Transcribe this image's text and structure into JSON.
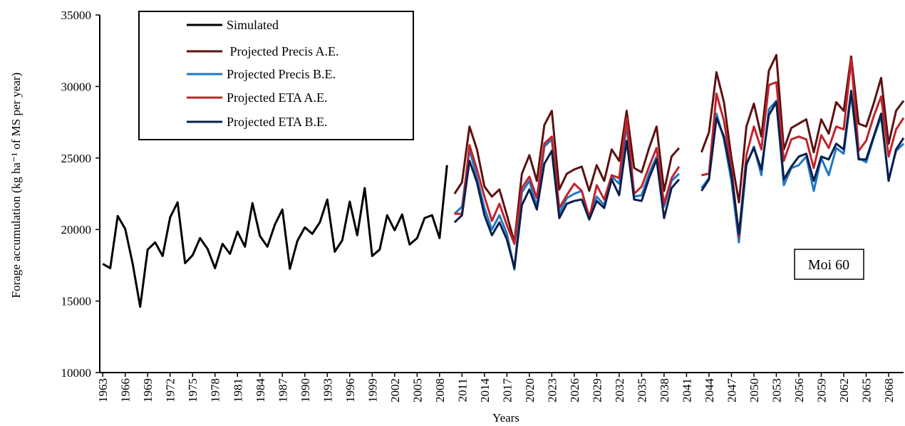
{
  "chart_data": {
    "type": "line",
    "xlabel": "Years",
    "ylabel": "Forage accumulation  (kg ha⁻¹ of MS per year)",
    "annotation": "Moi 60",
    "legend": "upper left",
    "xlim": [
      1962.6,
      2070
    ],
    "ylim": [
      10000,
      35000
    ],
    "yticks": [
      10000,
      15000,
      20000,
      25000,
      30000,
      35000
    ],
    "xticks": [
      1963,
      1966,
      1969,
      1972,
      1975,
      1978,
      1981,
      1984,
      1987,
      1990,
      1993,
      1996,
      1999,
      2002,
      2005,
      2008,
      2011,
      2014,
      2017,
      2020,
      2023,
      2026,
      2029,
      2032,
      2035,
      2038,
      2041,
      2044,
      2047,
      2050,
      2053,
      2056,
      2059,
      2062,
      2065,
      2068
    ],
    "x": [
      1963,
      1964,
      1965,
      1966,
      1967,
      1968,
      1969,
      1970,
      1971,
      1972,
      1973,
      1974,
      1975,
      1976,
      1977,
      1978,
      1979,
      1980,
      1981,
      1982,
      1983,
      1984,
      1985,
      1986,
      1987,
      1988,
      1989,
      1990,
      1991,
      1992,
      1993,
      1994,
      1995,
      1996,
      1997,
      1998,
      1999,
      2000,
      2001,
      2002,
      2003,
      2004,
      2005,
      2006,
      2007,
      2008,
      2009,
      2010,
      2011,
      2012,
      2013,
      2014,
      2015,
      2016,
      2017,
      2018,
      2019,
      2020,
      2021,
      2022,
      2023,
      2024,
      2025,
      2026,
      2027,
      2028,
      2029,
      2030,
      2031,
      2032,
      2033,
      2034,
      2035,
      2036,
      2037,
      2038,
      2039,
      2040,
      2041,
      2042,
      2043,
      2044,
      2045,
      2046,
      2047,
      2048,
      2049,
      2050,
      2051,
      2052,
      2053,
      2054,
      2055,
      2056,
      2057,
      2058,
      2059,
      2060,
      2061,
      2062,
      2063,
      2064,
      2065,
      2066,
      2067,
      2068,
      2069,
      2070
    ],
    "series": [
      {
        "name": "Simulated",
        "color": "#000000",
        "values": [
          17600,
          17300,
          20950,
          20050,
          17600,
          14600,
          18600,
          19100,
          18150,
          20850,
          21900,
          17650,
          18200,
          19400,
          18650,
          17300,
          19000,
          18300,
          19850,
          18800,
          21850,
          19550,
          18800,
          20350,
          21400,
          17250,
          19200,
          20150,
          19700,
          20500,
          22100,
          18450,
          19250,
          21950,
          19600,
          22900,
          18150,
          18600,
          21000,
          19950,
          21050,
          18950,
          19400,
          20800,
          21000,
          19400,
          24500,
          null,
          null,
          null,
          null,
          null,
          null,
          null,
          null,
          null,
          null,
          null,
          null,
          null,
          null,
          null,
          null,
          null,
          null,
          null,
          null,
          null,
          null,
          null,
          null,
          null,
          null,
          null,
          null,
          null,
          null,
          null,
          null,
          null,
          null,
          null,
          null,
          null,
          null,
          null,
          null,
          null,
          null,
          null,
          null,
          null,
          null,
          null,
          null,
          null,
          null,
          null,
          null,
          null,
          null,
          null,
          null,
          null,
          null,
          null,
          null,
          null
        ]
      },
      {
        "name": " Projected Precis A.E.",
        "color": "#5c1212",
        "values": [
          null,
          null,
          null,
          null,
          null,
          null,
          null,
          null,
          null,
          null,
          null,
          null,
          null,
          null,
          null,
          null,
          null,
          null,
          null,
          null,
          null,
          null,
          null,
          null,
          null,
          null,
          null,
          null,
          null,
          null,
          null,
          null,
          null,
          null,
          null,
          null,
          null,
          null,
          null,
          null,
          null,
          null,
          null,
          null,
          null,
          null,
          null,
          22500,
          23300,
          27200,
          25600,
          23000,
          22300,
          22800,
          21000,
          19100,
          23900,
          25200,
          23400,
          27300,
          28300,
          22800,
          23900,
          24200,
          24400,
          22700,
          24500,
          23400,
          25600,
          24800,
          28300,
          24300,
          24000,
          25700,
          27200,
          22700,
          25100,
          25700,
          null,
          null,
          25400,
          26800,
          31000,
          28900,
          25000,
          21900,
          27200,
          28800,
          26500,
          31100,
          32200,
          25600,
          27100,
          27400,
          27700,
          25400,
          27700,
          26700,
          28900,
          28300,
          32100,
          27400,
          27200,
          28800,
          30600,
          26000,
          28300,
          29000
        ]
      },
      {
        "name": "Projected Precis B.E.",
        "color": "#1f77c4",
        "values": [
          null,
          null,
          null,
          null,
          null,
          null,
          null,
          null,
          null,
          null,
          null,
          null,
          null,
          null,
          null,
          null,
          null,
          null,
          null,
          null,
          null,
          null,
          null,
          null,
          null,
          null,
          null,
          null,
          null,
          null,
          null,
          null,
          null,
          null,
          null,
          null,
          null,
          null,
          null,
          null,
          null,
          null,
          null,
          null,
          null,
          null,
          null,
          21100,
          21600,
          25600,
          23600,
          21500,
          20000,
          21000,
          19700,
          17200,
          22600,
          23400,
          21600,
          25800,
          26300,
          21100,
          22200,
          22500,
          22700,
          20900,
          22300,
          21700,
          23700,
          23200,
          27300,
          22300,
          22400,
          23900,
          25100,
          21600,
          23400,
          23900,
          null,
          null,
          22900,
          23600,
          28100,
          26300,
          23400,
          19100,
          24500,
          25800,
          23800,
          28400,
          29000,
          23100,
          24300,
          24500,
          25100,
          22700,
          25000,
          23800,
          25700,
          25300,
          29500,
          25000,
          24700,
          26400,
          27900,
          23500,
          25500,
          26000
        ]
      },
      {
        "name": "Projected ETA A.E.",
        "color": "#c0232b",
        "values": [
          null,
          null,
          null,
          null,
          null,
          null,
          null,
          null,
          null,
          null,
          null,
          null,
          null,
          null,
          null,
          null,
          null,
          null,
          null,
          null,
          null,
          null,
          null,
          null,
          null,
          null,
          null,
          null,
          null,
          null,
          null,
          null,
          null,
          null,
          null,
          null,
          null,
          null,
          null,
          null,
          null,
          null,
          null,
          null,
          null,
          null,
          null,
          21100,
          21100,
          25900,
          24200,
          22300,
          20600,
          21800,
          20300,
          19000,
          22900,
          23700,
          22200,
          26000,
          26500,
          21500,
          22400,
          23200,
          22700,
          20800,
          23100,
          22100,
          23800,
          23600,
          27800,
          22500,
          23000,
          24400,
          25700,
          21800,
          23600,
          24400,
          null,
          null,
          23800,
          23900,
          29500,
          27600,
          24300,
          19500,
          25200,
          27200,
          25600,
          30100,
          30300,
          24800,
          26300,
          26500,
          26300,
          24300,
          26600,
          25700,
          27200,
          27000,
          31900,
          25500,
          26200,
          27900,
          29300,
          25100,
          27000,
          27800
        ]
      },
      {
        "name": "Projected ETA B.E.",
        "color": "#0a1f4a",
        "values": [
          null,
          null,
          null,
          null,
          null,
          null,
          null,
          null,
          null,
          null,
          null,
          null,
          null,
          null,
          null,
          null,
          null,
          null,
          null,
          null,
          null,
          null,
          null,
          null,
          null,
          null,
          null,
          null,
          null,
          null,
          null,
          null,
          null,
          null,
          null,
          null,
          null,
          null,
          null,
          null,
          null,
          null,
          null,
          null,
          null,
          null,
          null,
          20500,
          21000,
          24800,
          23300,
          21000,
          19600,
          20500,
          19300,
          17300,
          21700,
          22800,
          21400,
          24600,
          25500,
          20800,
          21800,
          22000,
          22100,
          20700,
          22000,
          21500,
          23500,
          22400,
          26200,
          22100,
          22000,
          23600,
          24900,
          20800,
          22900,
          23500,
          null,
          null,
          22700,
          23500,
          27800,
          26500,
          23800,
          19700,
          24600,
          25700,
          24200,
          28000,
          28900,
          23500,
          24400,
          25100,
          25300,
          23400,
          25100,
          24900,
          26000,
          25600,
          29700,
          24900,
          24900,
          26500,
          28100,
          23400,
          25600,
          26400
        ]
      }
    ]
  }
}
